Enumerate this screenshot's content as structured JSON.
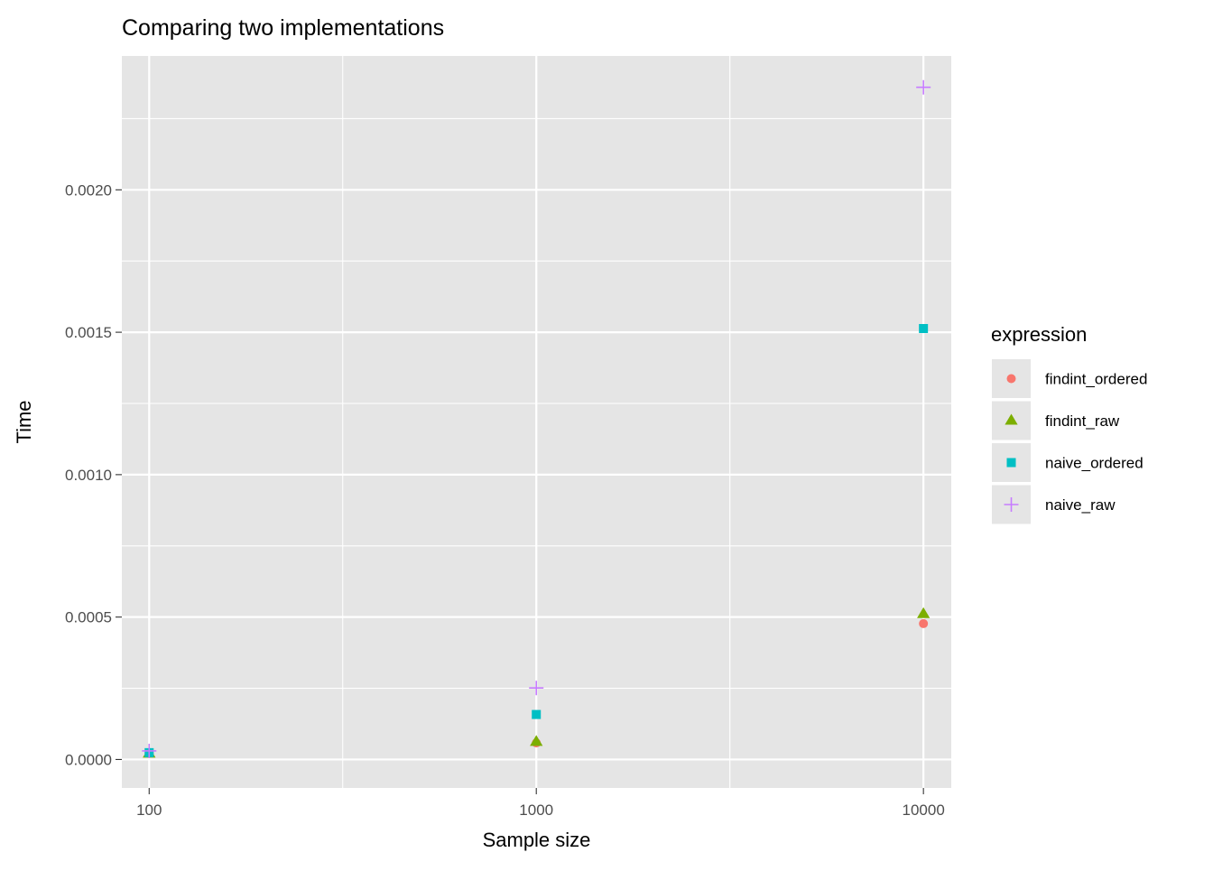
{
  "chart_data": {
    "type": "scatter",
    "title": "Comparing two implementations",
    "xlabel": "Sample size",
    "ylabel": "Time",
    "x_scale": "log10",
    "xlim": [
      85,
      11800
    ],
    "ylim": [
      -0.0001,
      0.00247
    ],
    "x_ticks": [
      100,
      1000,
      10000
    ],
    "x_tick_labels": [
      "100",
      "1000",
      "10000"
    ],
    "y_ticks": [
      0,
      0.0005,
      0.001,
      0.0015,
      0.002
    ],
    "y_tick_labels": [
      "0.0000",
      "0.0005",
      "0.0010",
      "0.0015",
      "0.0020"
    ],
    "grid": true,
    "legend": {
      "title": "expression",
      "position": "right"
    },
    "series": [
      {
        "name": "findint_ordered",
        "shape": "circle",
        "color": "#F8766D",
        "x": [
          100,
          1000,
          10000
        ],
        "y": [
          2.2e-05,
          5.8e-05,
          0.000477
        ]
      },
      {
        "name": "findint_raw",
        "shape": "triangle",
        "color": "#7CAE00",
        "x": [
          100,
          1000,
          10000
        ],
        "y": [
          2.1e-05,
          6.2e-05,
          0.000511
        ]
      },
      {
        "name": "naive_ordered",
        "shape": "square",
        "color": "#00BFC4",
        "x": [
          100,
          1000,
          10000
        ],
        "y": [
          2.4e-05,
          0.000158,
          0.001513
        ]
      },
      {
        "name": "naive_raw",
        "shape": "plus",
        "color": "#C77CFF",
        "x": [
          100,
          1000,
          10000
        ],
        "y": [
          3e-05,
          0.000251,
          0.00236
        ]
      }
    ]
  },
  "theme": {
    "panel_bg": "#E5E5E5",
    "grid_color": "#FFFFFF",
    "text_color": "#000000",
    "tick_label_color": "#4D4D4D",
    "tick_color": "#333333"
  }
}
